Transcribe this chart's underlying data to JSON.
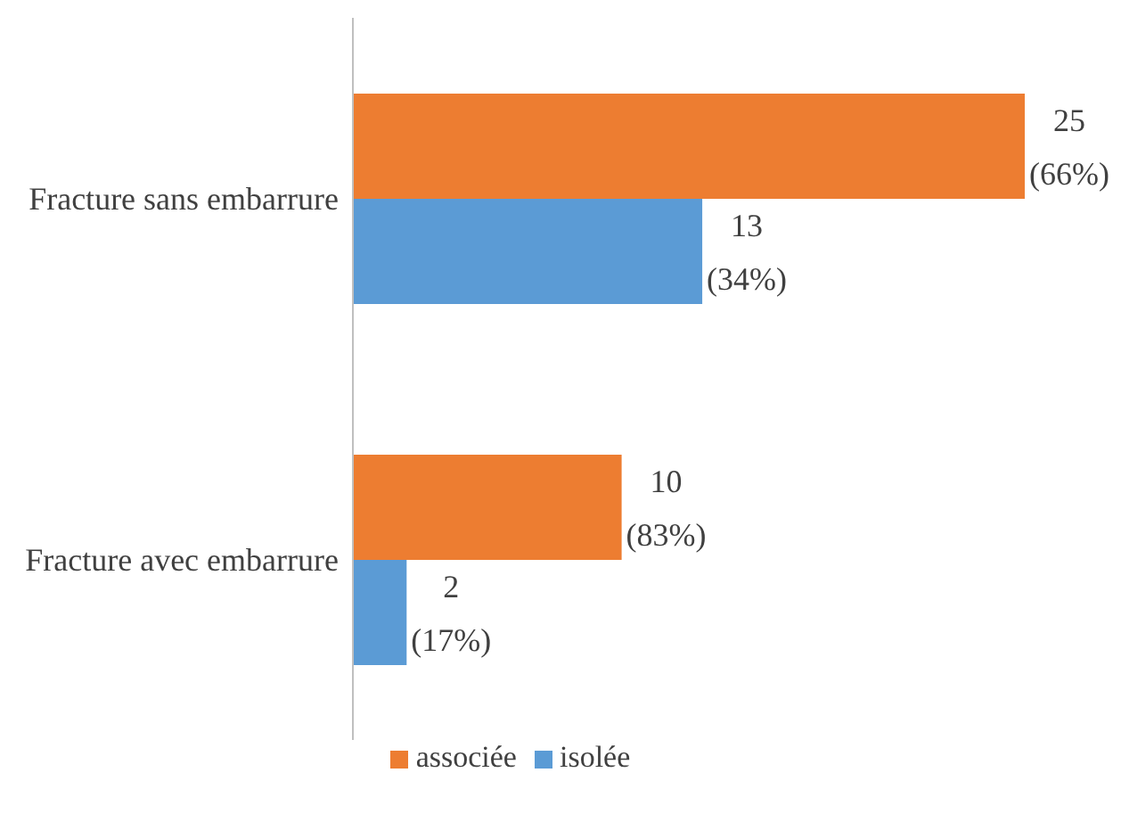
{
  "chart_data": {
    "type": "bar",
    "orientation": "horizontal",
    "categories": [
      "Fracture sans embarrure",
      "Fracture avec embarrure"
    ],
    "series": [
      {
        "name": "associée",
        "color": "#ed7d31",
        "values": [
          25,
          10
        ],
        "value_labels": [
          "25 (66%)",
          "10 (83%)"
        ]
      },
      {
        "name": "isolée",
        "color": "#5b9bd5",
        "values": [
          13,
          2
        ],
        "value_labels": [
          "13 (34%)",
          "2 (17%)"
        ]
      }
    ],
    "legend": "bottom",
    "grid": false
  }
}
